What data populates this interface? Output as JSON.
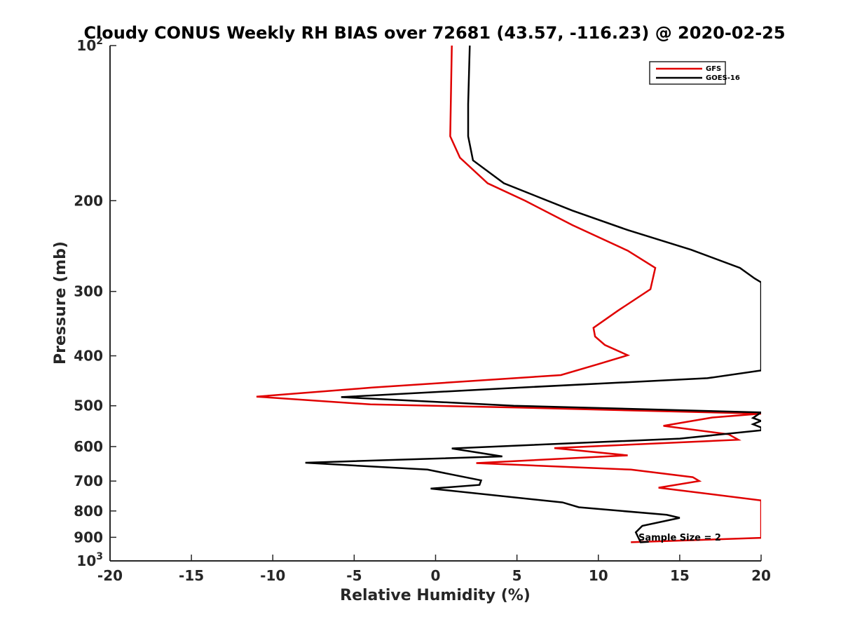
{
  "chart_data": {
    "type": "line",
    "title": "Cloudy CONUS Weekly RH BIAS over 72681 (43.57, -116.23) @ 2020-02-25",
    "xlabel": "Relative Humidity (%)",
    "ylabel": "Pressure (mb)",
    "xlim": [
      -20,
      20
    ],
    "ylim": [
      100,
      1000
    ],
    "y_scale": "log",
    "y_reversed": true,
    "grid": false,
    "legend_position": "top-right",
    "x_ticks": [
      "-20",
      "-15",
      "-10",
      "-5",
      "0",
      "5",
      "10",
      "15",
      "20"
    ],
    "y_ticks": [
      {
        "value": 100,
        "label": "10",
        "exp": "2"
      },
      {
        "value": 200,
        "label": "200"
      },
      {
        "value": 300,
        "label": "300"
      },
      {
        "value": 400,
        "label": "400"
      },
      {
        "value": 500,
        "label": "500"
      },
      {
        "value": 600,
        "label": "600"
      },
      {
        "value": 700,
        "label": "700"
      },
      {
        "value": 800,
        "label": "800"
      },
      {
        "value": 900,
        "label": "900"
      },
      {
        "value": 1000,
        "label": "10",
        "exp": "3"
      }
    ],
    "series": [
      {
        "name": "GFS",
        "color": "#e00000",
        "points": [
          [
            1.0,
            100
          ],
          [
            0.9,
            150
          ],
          [
            1.5,
            165
          ],
          [
            3.2,
            185
          ],
          [
            5.5,
            200
          ],
          [
            8.4,
            223
          ],
          [
            11.8,
            250
          ],
          [
            13.5,
            270
          ],
          [
            13.2,
            297
          ],
          [
            11.2,
            327
          ],
          [
            9.7,
            353
          ],
          [
            9.8,
            367
          ],
          [
            10.4,
            381
          ],
          [
            11.8,
            399
          ],
          [
            10.0,
            415
          ],
          [
            7.7,
            436
          ],
          [
            -3.9,
            461
          ],
          [
            -11.0,
            480
          ],
          [
            -4.0,
            497
          ],
          [
            5.0,
            504
          ],
          [
            20.0,
            518
          ],
          [
            17.0,
            527
          ],
          [
            14.0,
            547
          ],
          [
            18.0,
            568
          ],
          [
            18.6,
            582
          ],
          [
            7.3,
            604
          ],
          [
            11.8,
            624
          ],
          [
            2.5,
            646
          ],
          [
            12.0,
            665
          ],
          [
            15.8,
            688
          ],
          [
            16.2,
            700
          ],
          [
            13.7,
            721
          ],
          [
            20.0,
            763
          ],
          [
            20.0,
            902
          ],
          [
            12.0,
            920
          ]
        ]
      },
      {
        "name": "GOES-16",
        "color": "#000000",
        "points": [
          [
            2.1,
            100
          ],
          [
            2.0,
            130
          ],
          [
            2.0,
            150
          ],
          [
            2.3,
            167
          ],
          [
            4.2,
            185
          ],
          [
            8.4,
            209
          ],
          [
            11.8,
            228
          ],
          [
            15.7,
            249
          ],
          [
            18.7,
            270
          ],
          [
            19.6,
            283
          ],
          [
            20.0,
            288
          ],
          [
            20.0,
            427
          ],
          [
            16.7,
            442
          ],
          [
            4.0,
            463
          ],
          [
            -5.8,
            481
          ],
          [
            4.8,
            500
          ],
          [
            20.0,
            515
          ],
          [
            19.5,
            528
          ],
          [
            20.0,
            535
          ],
          [
            20.0,
            535
          ],
          [
            19.5,
            543
          ],
          [
            20.0,
            551
          ],
          [
            20.0,
            558
          ],
          [
            15.0,
            579
          ],
          [
            1.0,
            605
          ],
          [
            4.1,
            627
          ],
          [
            -8.0,
            645
          ],
          [
            -0.5,
            665
          ],
          [
            2.8,
            698
          ],
          [
            2.7,
            712
          ],
          [
            -0.3,
            724
          ],
          [
            7.8,
            770
          ],
          [
            8.8,
            787
          ],
          [
            14.2,
            814
          ],
          [
            15.0,
            825
          ],
          [
            12.7,
            855
          ],
          [
            12.3,
            880
          ],
          [
            12.6,
            920
          ],
          [
            13.1,
            918
          ]
        ]
      }
    ],
    "annotation": "Sample Size = 2"
  }
}
